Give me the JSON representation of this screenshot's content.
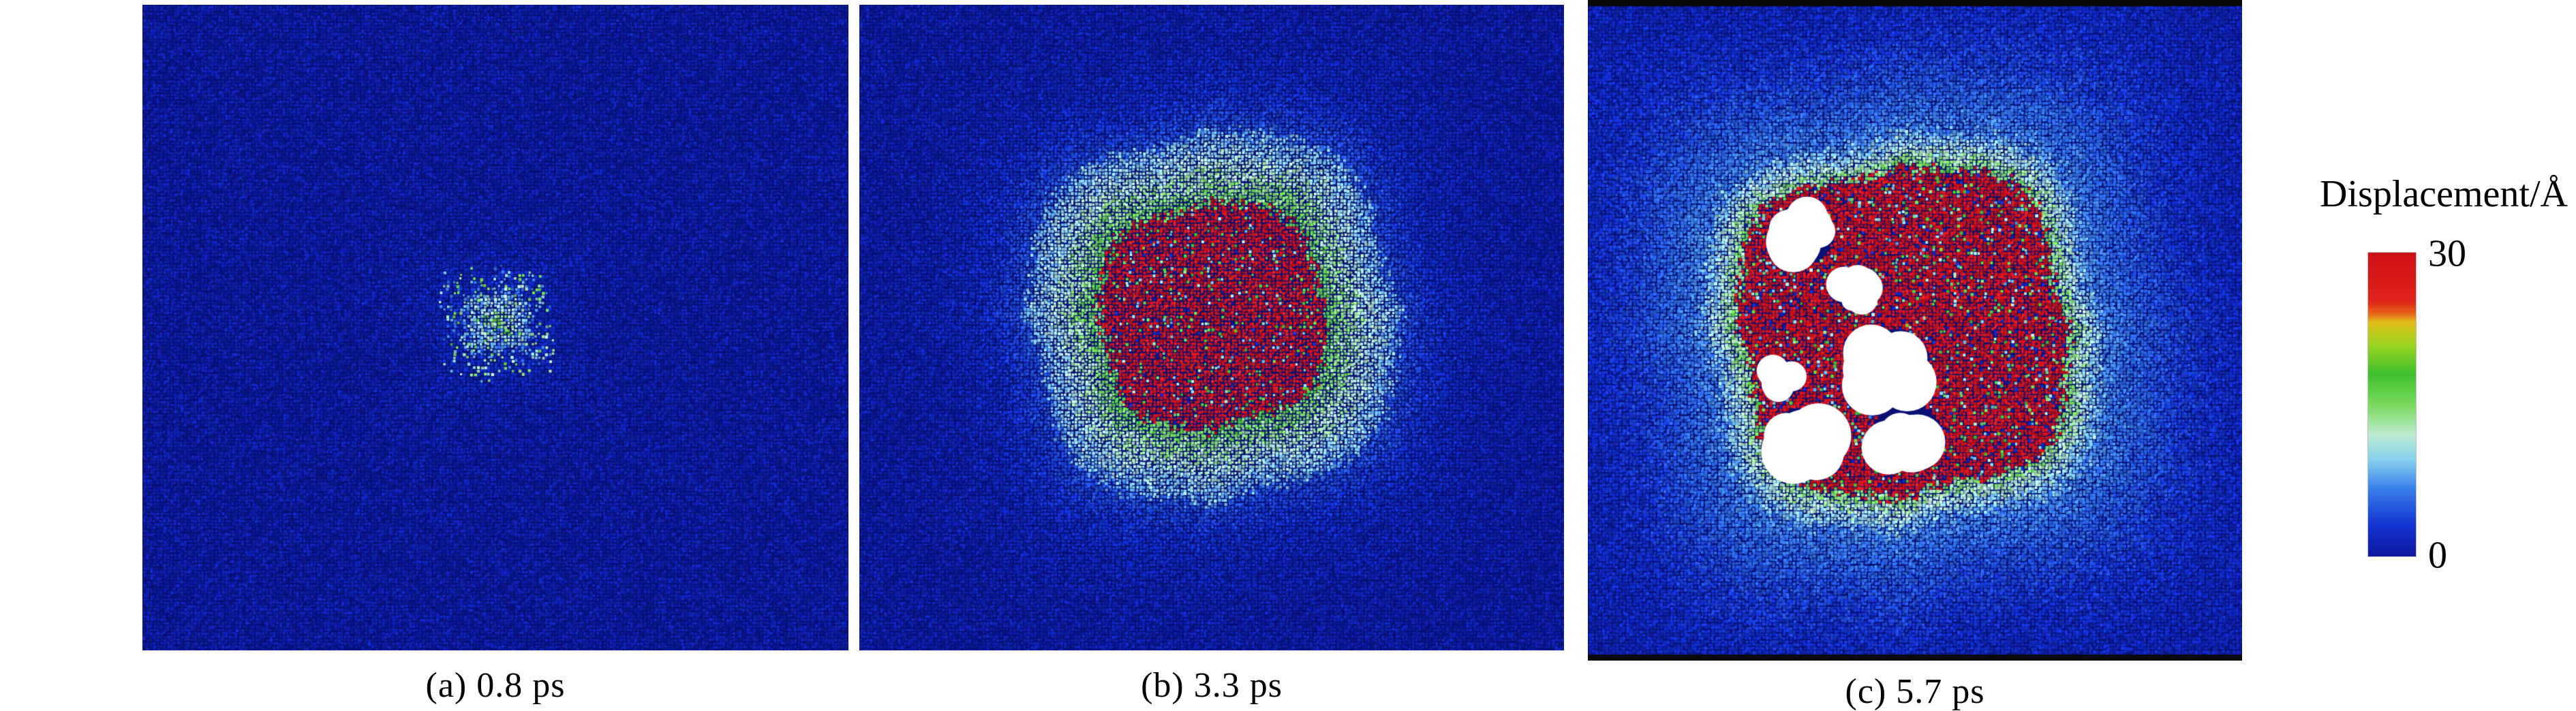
{
  "chart_data": {
    "type": "heatmap",
    "description": "Three molecular-dynamics snapshots of atomic displacement magnitude in a crystal lattice at increasing times; a blue (low displacement) lattice with a growing green/red (high displacement) core, panel (c) contains white voids and black cell-boundary lines.",
    "colorbar": {
      "label": "Displacement/Å",
      "min": 0,
      "max": 30,
      "max_label": "30",
      "min_label": "0",
      "stops": [
        {
          "t": 0.0,
          "color": [
            14,
            25,
            160
          ]
        },
        {
          "t": 0.1,
          "color": [
            18,
            50,
            210
          ]
        },
        {
          "t": 0.22,
          "color": [
            55,
            125,
            235
          ]
        },
        {
          "t": 0.32,
          "color": [
            135,
            210,
            238
          ]
        },
        {
          "t": 0.4,
          "color": [
            190,
            235,
            210
          ]
        },
        {
          "t": 0.5,
          "color": [
            120,
            218,
            90
          ]
        },
        {
          "t": 0.6,
          "color": [
            62,
            192,
            48
          ]
        },
        {
          "t": 0.7,
          "color": [
            158,
            212,
            32
          ]
        },
        {
          "t": 0.77,
          "color": [
            225,
            190,
            25
          ]
        },
        {
          "t": 0.8,
          "color": [
            230,
            100,
            25
          ]
        },
        {
          "t": 0.84,
          "color": [
            225,
            35,
            28
          ]
        },
        {
          "t": 1.0,
          "color": [
            205,
            16,
            22
          ]
        }
      ]
    },
    "panels": [
      {
        "label": "(a) 0.8 ps",
        "time_ps": 0.8,
        "peak_displacement": 18,
        "hot_core_radius_frac": 0.05,
        "green_zone_radius_frac": 0.14,
        "void_count": 0,
        "has_cell_border": false,
        "appearance": {
          "seed": 7,
          "cx_off": 0.0,
          "cy_off": -0.01,
          "core_r": 0.045,
          "core_v": 15,
          "core_noise": 8,
          "core_sparse": 0.25,
          "green_r": 0.1,
          "green_hi": 12,
          "green_lo": 6,
          "speckle_zone": 0.17,
          "speckle_prob": 0.3,
          "speckle_max": 11,
          "bg_v": 2.2,
          "bg_decay": 0.1,
          "bg_noise": 1.6,
          "lobe": 0.18,
          "dot": 3.0,
          "dark_specks": 0,
          "void_count": 0
        }
      },
      {
        "label": "(b) 3.3 ps",
        "time_ps": 3.3,
        "peak_displacement": 30,
        "hot_core_radius_frac": 0.39,
        "green_zone_radius_frac": 0.65,
        "void_count": 0,
        "has_cell_border": false,
        "appearance": {
          "seed": 13,
          "cx_off": 0.0,
          "cy_off": -0.02,
          "core_r": 0.34,
          "core_v": 29,
          "core_noise": 10,
          "core_sparse": 0.1,
          "green_r": 0.56,
          "green_hi": 16,
          "green_lo": 8,
          "speckle_zone": 0,
          "speckle_prob": 0,
          "speckle_max": 0,
          "bg_v": 4.0,
          "bg_decay": 0.16,
          "bg_noise": 1.6,
          "lobe": 0.1,
          "dot": 3.0,
          "dark_specks": 0.015,
          "void_count": 0
        }
      },
      {
        "label": "(c) 5.7 ps",
        "time_ps": 5.7,
        "peak_displacement": 30,
        "hot_core_radius_frac": 0.58,
        "green_zone_radius_frac": 0.72,
        "void_count": 7,
        "has_cell_border": true,
        "appearance": {
          "seed": 23,
          "cx_off": -0.02,
          "cy_off": 0.0,
          "core_r": 0.5,
          "core_v": 30,
          "core_noise": 9,
          "core_sparse": 0.12,
          "green_r": 0.62,
          "green_hi": 15,
          "green_lo": 7,
          "speckle_zone": 0,
          "speckle_prob": 0,
          "speckle_max": 0,
          "bg_v": 6.0,
          "bg_decay": 0.28,
          "bg_noise": 2.0,
          "lobe": 0.12,
          "dot": 3.4,
          "dark_specks": 0.05,
          "void_count": 7
        }
      }
    ]
  }
}
